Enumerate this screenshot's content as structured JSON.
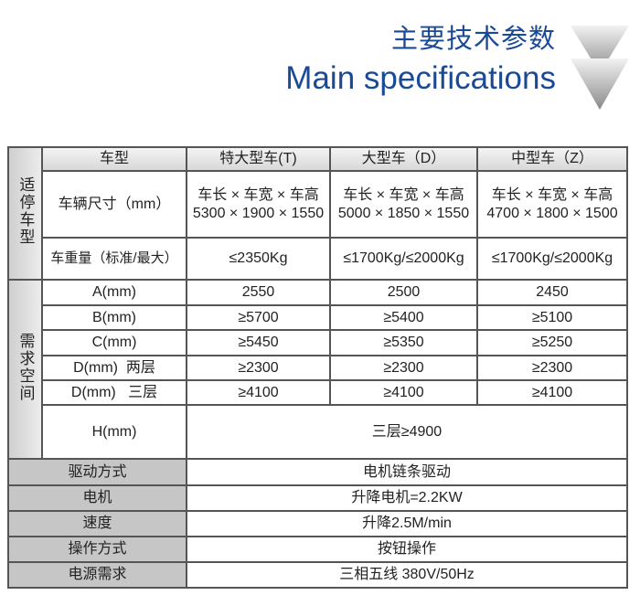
{
  "header": {
    "title_cn": "主要技术参数",
    "title_en": "Main specifications"
  },
  "table": {
    "col_headers": [
      "车型",
      "特大型车(T)",
      "大型车（D）",
      "中型车（Z）"
    ],
    "group_suitable": "适停车型",
    "group_space": "需求空间",
    "size_label": "车辆尺寸（mm）",
    "size_caption": [
      "车长 × 车宽 × 车高",
      "车长 × 车宽 × 车高",
      "车长 × 车宽 × 车高"
    ],
    "size_values": [
      "5300 × 1900 × 1550",
      "5000 × 1850 × 1550",
      "4700 × 1800 × 1500"
    ],
    "weight_label": "车重量（标准/最大）",
    "weight_values": [
      "≤2350Kg",
      "≤1700Kg/≤2000Kg",
      "≤1700Kg/≤2000Kg"
    ],
    "space_rows": [
      {
        "label": "A(mm)",
        "values": [
          "2550",
          "2500",
          "2450"
        ]
      },
      {
        "label": "B(mm)",
        "values": [
          "≥5700",
          "≥5400",
          "≥5100"
        ]
      },
      {
        "label": "C(mm)",
        "values": [
          "≥5450",
          "≥5350",
          "≥5250"
        ]
      },
      {
        "label": "D(mm)  两层",
        "values": [
          "≥2300",
          "≥2300",
          "≥2300"
        ]
      },
      {
        "label": "D(mm)   三层",
        "values": [
          "≥4100",
          "≥4100",
          "≥4100"
        ]
      }
    ],
    "h_label": "H(mm)",
    "h_value": "三层≥4900",
    "general_rows": [
      {
        "label": "驱动方式",
        "value": "电机链条驱动"
      },
      {
        "label": "电机",
        "value": "升降电机=2.2KW"
      },
      {
        "label": "速度",
        "value": "升降2.5M/min"
      },
      {
        "label": "操作方式",
        "value": "按钮操作"
      },
      {
        "label": "电源需求",
        "value": "三相五线 380V/50Hz"
      }
    ]
  }
}
